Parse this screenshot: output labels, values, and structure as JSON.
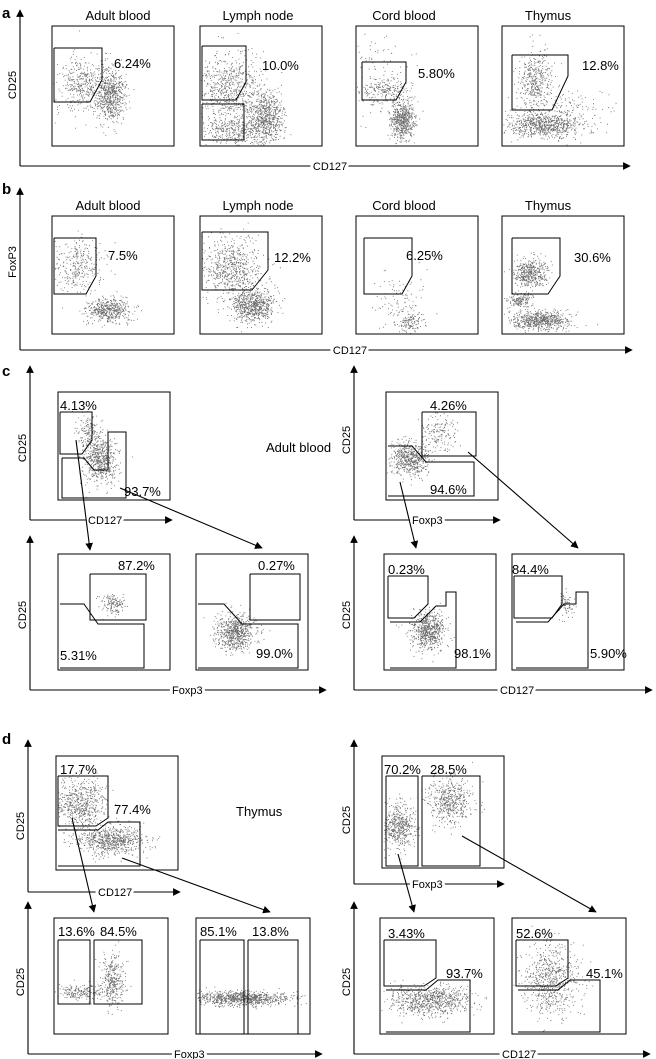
{
  "panel_letters": [
    "a",
    "b",
    "c",
    "d"
  ],
  "row_a": {
    "y_axis": "CD25",
    "x_axis": "CD127",
    "plots": [
      {
        "title": "Adult blood",
        "pct": "6.24%"
      },
      {
        "title": "Lymph node",
        "pct": "10.0%"
      },
      {
        "title": "Cord blood",
        "pct": "5.80%"
      },
      {
        "title": "Thymus",
        "pct": "12.8%"
      }
    ]
  },
  "row_b": {
    "y_axis": "FoxP3",
    "x_axis": "CD127",
    "plots": [
      {
        "title": "Adult blood",
        "pct": "7.5%"
      },
      {
        "title": "Lymph node",
        "pct": "12.2%"
      },
      {
        "title": "Cord blood",
        "pct": "6.25%"
      },
      {
        "title": "Thymus",
        "pct": "30.6%"
      }
    ]
  },
  "panel_c": {
    "label": "Adult blood",
    "left": {
      "top": {
        "y_axis": "CD25",
        "x_axis": "CD127",
        "pct_hi": "4.13%",
        "pct_lo": "93.7%"
      },
      "sub1": {
        "pct_hi": "87.2%",
        "pct_lo": "5.31%"
      },
      "sub2": {
        "pct_hi": "0.27%",
        "pct_lo": "99.0%"
      },
      "y_axis": "CD25",
      "x_axis": "Foxp3"
    },
    "right": {
      "top": {
        "y_axis": "CD25",
        "x_axis": "Foxp3",
        "pct_hi": "4.26%",
        "pct_lo": "94.6%"
      },
      "sub1": {
        "pct_hi": "0.23%",
        "pct_lo": "98.1%"
      },
      "sub2": {
        "pct_hi": "84.4%",
        "pct_lo": "5.90%"
      },
      "y_axis": "CD25",
      "x_axis": "CD127"
    }
  },
  "panel_d": {
    "label": "Thymus",
    "left": {
      "top": {
        "y_axis": "CD25",
        "x_axis": "CD127",
        "pct_hi": "17.7%",
        "pct_lo": "77.4%"
      },
      "sub1": {
        "pct_a": "13.6%",
        "pct_b": "84.5%"
      },
      "sub2": {
        "pct_a": "85.1%",
        "pct_b": "13.8%"
      },
      "y_axis": "CD25",
      "x_axis": "Foxp3"
    },
    "right": {
      "top": {
        "y_axis": "CD25",
        "x_axis": "Foxp3",
        "pct_a": "70.2%",
        "pct_b": "28.5%"
      },
      "sub1": {
        "pct_hi": "3.43%",
        "pct_lo": "93.7%"
      },
      "sub2": {
        "pct_hi": "52.6%",
        "pct_lo": "45.1%"
      },
      "y_axis": "CD25",
      "x_axis": "CD127"
    }
  }
}
